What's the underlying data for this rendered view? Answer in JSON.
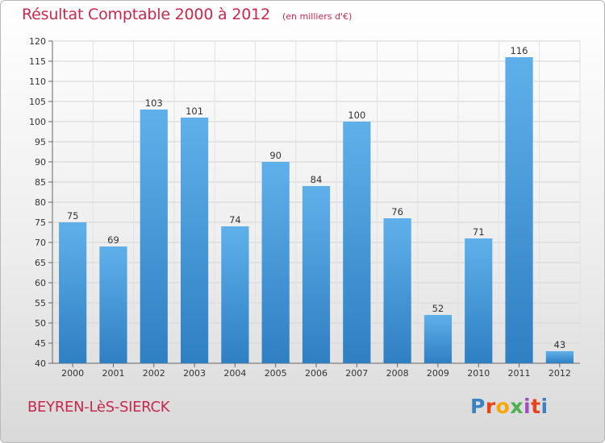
{
  "header": {
    "title": "Résultat Comptable 2000 à 2012",
    "subtitle": "(en milliers d'€)"
  },
  "footer": {
    "commune": "BEYREN-LèS-SIERCK",
    "brand": "Proxiti",
    "brand_colors": [
      "#3b82c4",
      "#e8441c",
      "#f5a800",
      "#4caf50",
      "#a14fbf",
      "#e8441c",
      "#3b82c4"
    ]
  },
  "colors": {
    "bar_top": "#5fb0ea",
    "bar_bottom": "#2f7fc3",
    "text_accent": "#c8284c"
  },
  "chart_data": {
    "type": "bar",
    "title": "Résultat Comptable 2000 à 2012",
    "subtitle": "(en milliers d'€)",
    "xlabel": "",
    "ylabel": "",
    "categories": [
      "2000",
      "2001",
      "2002",
      "2003",
      "2004",
      "2005",
      "2006",
      "2007",
      "2008",
      "2009",
      "2010",
      "2011",
      "2012"
    ],
    "values": [
      75,
      69,
      103,
      101,
      74,
      90,
      84,
      100,
      76,
      52,
      71,
      116,
      43
    ],
    "ylim": [
      40,
      120
    ],
    "yticks": [
      40,
      45,
      50,
      55,
      60,
      65,
      70,
      75,
      80,
      85,
      90,
      95,
      100,
      105,
      110,
      115,
      120
    ],
    "grid": true
  }
}
